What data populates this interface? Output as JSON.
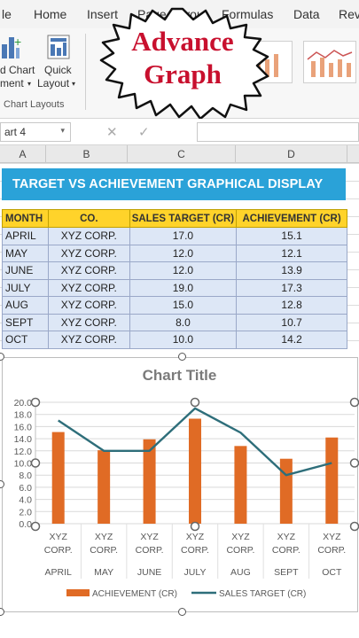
{
  "ribbon": {
    "tabs": [
      "le",
      "Home",
      "Insert",
      "Page Layout",
      "Formulas",
      "Data",
      "Rev"
    ],
    "chart_label_1": "d Chart",
    "chart_label_2": "ment",
    "quick_label_1": "Quick",
    "quick_label_2": "Layout",
    "group_label": "Chart Layouts"
  },
  "badge": {
    "line1": "Advance",
    "line2": "Graph",
    "text_color": "#c8102e"
  },
  "formula_bar": {
    "name_box": "art 4",
    "cancel_icon": "close-icon",
    "enter_icon": "check-icon"
  },
  "columns": [
    "A",
    "B",
    "C",
    "D"
  ],
  "sheet": {
    "banner_title": "TARGET VS ACHIEVEMENT GRAPHICAL DISPLAY",
    "banner_color": "#2aa2d8",
    "headers": [
      "MONTH",
      "CO.",
      "SALES TARGET (CR)",
      "ACHIEVEMENT (CR)"
    ],
    "rows": [
      [
        "APRIL",
        "XYZ CORP.",
        "17.0",
        "15.1"
      ],
      [
        "MAY",
        "XYZ CORP.",
        "12.0",
        "12.1"
      ],
      [
        "JUNE",
        "XYZ CORP.",
        "12.0",
        "13.9"
      ],
      [
        "JULY",
        "XYZ CORP.",
        "19.0",
        "17.3"
      ],
      [
        "AUG",
        "XYZ CORP.",
        "15.0",
        "12.8"
      ],
      [
        "SEPT",
        "XYZ CORP.",
        "8.0",
        "10.7"
      ],
      [
        "OCT",
        "XYZ CORP.",
        "10.0",
        "14.2"
      ]
    ]
  },
  "chart_data": {
    "type": "bar",
    "title": "Chart Title",
    "categories": [
      "APRIL",
      "MAY",
      "JUNE",
      "JULY",
      "AUG",
      "SEPT",
      "OCT"
    ],
    "category_sublabels": [
      "XYZ",
      "CORP."
    ],
    "series": [
      {
        "name": "ACHIEVEMENT (CR)",
        "type": "bar",
        "color": "#e06b25",
        "values": [
          15.1,
          12.1,
          13.9,
          17.3,
          12.8,
          10.7,
          14.2
        ]
      },
      {
        "name": "SALES TARGET (CR)",
        "type": "line",
        "color": "#2e6e7a",
        "values": [
          17.0,
          12.0,
          12.0,
          19.0,
          15.0,
          8.0,
          10.0
        ]
      }
    ],
    "ylim": [
      0,
      20
    ],
    "y_ticks": [
      "0.0",
      "2.0",
      "4.0",
      "6.0",
      "8.0",
      "10.0",
      "12.0",
      "14.0",
      "16.0",
      "18.0",
      "20.0"
    ],
    "grid": true,
    "legend_position": "bottom"
  }
}
